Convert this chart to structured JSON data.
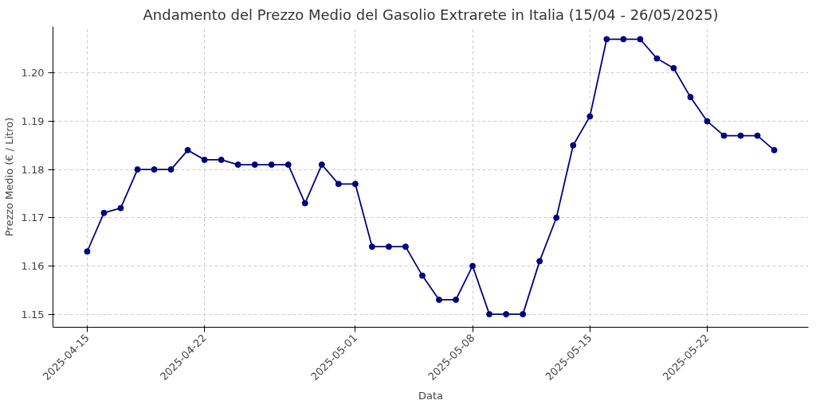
{
  "chart_data": {
    "type": "line",
    "title": "Andamento del Prezzo Medio del Gasolio Extrarete in Italia (15/04 - 26/05/2025)",
    "xlabel": "Data",
    "ylabel": "Prezzo Medio (€ / Litro)",
    "x": [
      "2025-04-15",
      "2025-04-16",
      "2025-04-17",
      "2025-04-18",
      "2025-04-19",
      "2025-04-20",
      "2025-04-21",
      "2025-04-22",
      "2025-04-23",
      "2025-04-24",
      "2025-04-25",
      "2025-04-26",
      "2025-04-27",
      "2025-04-28",
      "2025-04-29",
      "2025-04-30",
      "2025-05-01",
      "2025-05-02",
      "2025-05-03",
      "2025-05-04",
      "2025-05-05",
      "2025-05-06",
      "2025-05-07",
      "2025-05-08",
      "2025-05-09",
      "2025-05-10",
      "2025-05-11",
      "2025-05-12",
      "2025-05-13",
      "2025-05-14",
      "2025-05-15",
      "2025-05-16",
      "2025-05-17",
      "2025-05-18",
      "2025-05-19",
      "2025-05-20",
      "2025-05-21",
      "2025-05-22",
      "2025-05-23",
      "2025-05-24",
      "2025-05-25",
      "2025-05-26"
    ],
    "series": [
      {
        "color": "#000080",
        "values": [
          1.163,
          1.171,
          1.172,
          1.18,
          1.18,
          1.18,
          1.184,
          1.182,
          1.182,
          1.181,
          1.181,
          1.181,
          1.181,
          1.173,
          1.181,
          1.177,
          1.177,
          1.164,
          1.164,
          1.164,
          1.158,
          1.153,
          1.153,
          1.16,
          1.15,
          1.15,
          1.15,
          1.161,
          1.17,
          1.185,
          1.191,
          1.207,
          1.207,
          1.207,
          1.203,
          1.201,
          1.195,
          1.19,
          1.187,
          1.187,
          1.187,
          1.184
        ]
      }
    ],
    "xlim": [
      "2025-04-12T23:00",
      "2025-05-28T01:00"
    ],
    "xticks": [
      "2025-04-15",
      "2025-04-22",
      "2025-05-01",
      "2025-05-08",
      "2025-05-15",
      "2025-05-22"
    ],
    "ylim": [
      1.1473,
      1.2096
    ],
    "yticks": [
      {
        "value": 1.15,
        "label": "1.15"
      },
      {
        "value": 1.16,
        "label": "1.16"
      },
      {
        "value": 1.17,
        "label": "1.17"
      },
      {
        "value": 1.18,
        "label": "1.18"
      },
      {
        "value": 1.19,
        "label": "1.19"
      },
      {
        "value": 1.2,
        "label": "1.20"
      }
    ],
    "grid": true,
    "marker": "circle",
    "line_style": "solid"
  }
}
